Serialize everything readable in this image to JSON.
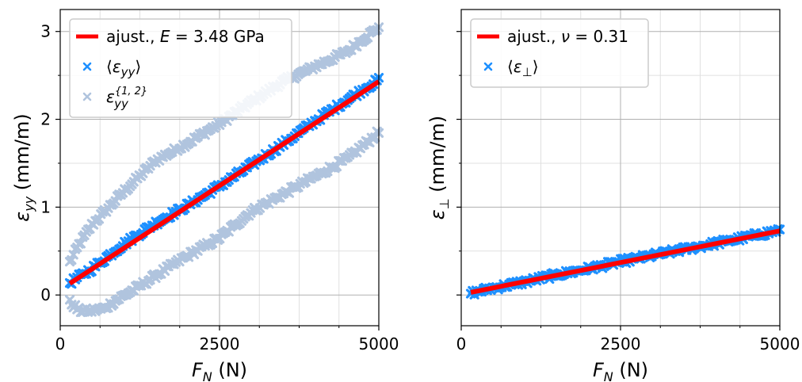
{
  "colors": {
    "fit": "#ff0000",
    "mean": "#1e90ff",
    "gauges": "#b0c4de",
    "grid_major": "#b0b0b0",
    "grid_minor": "#e0e0e0"
  },
  "chart_data": [
    {
      "type": "scatter",
      "xlabel_main": "F",
      "xlabel_sub": "N",
      "xlabel_unit": " (N)",
      "ylabel_main": "ε",
      "ylabel_sub": "yy",
      "ylabel_unit": " (mm/m)",
      "xlim": [
        0,
        5000
      ],
      "ylim": [
        -0.35,
        3.25
      ],
      "xticks": [
        0,
        2500,
        5000
      ],
      "yticks": [
        0,
        1,
        2,
        3
      ],
      "grid": true,
      "legend_position": "upper-left",
      "legend": [
        {
          "label_prefix": "ajust., ",
          "label_var": "E",
          "label_rest": " = 3.48 GPa",
          "marker": "line",
          "color": "#ff0000"
        },
        {
          "label_prefix": "⟨",
          "label_var": "ε",
          "label_sub": "yy",
          "label_rest": "⟩",
          "marker": "x",
          "color": "#1e90ff"
        },
        {
          "label_prefix": "",
          "label_var": "ε",
          "label_sub": "yy",
          "label_sup": "{1, 2}",
          "label_rest": "",
          "marker": "x",
          "color": "#b0c4de"
        }
      ],
      "series": [
        {
          "name": "ε_yy^{1,2}",
          "kind": "scatter",
          "color": "#b0c4de",
          "x": [
            150,
            300,
            500,
            700,
            1000,
            1500,
            2000,
            2500,
            3000,
            3500,
            4000,
            4500,
            5000
          ],
          "y": [
            0.37,
            0.58,
            0.8,
            0.95,
            1.18,
            1.53,
            1.73,
            1.95,
            2.2,
            2.43,
            2.6,
            2.77,
            3.05
          ]
        },
        {
          "name": "ε_yy^{1,2}",
          "kind": "scatter",
          "color": "#b0c4de",
          "x": [
            150,
            300,
            500,
            700,
            900,
            1200,
            1500,
            2000,
            2500,
            3000,
            3500,
            4000,
            4500,
            5000
          ],
          "y": [
            -0.08,
            -0.18,
            -0.18,
            -0.15,
            -0.05,
            0.08,
            0.22,
            0.45,
            0.65,
            0.95,
            1.15,
            1.35,
            1.55,
            1.85
          ]
        },
        {
          "name": "⟨ε_yy⟩",
          "kind": "scatter",
          "color": "#1e90ff",
          "x": [
            150,
            500,
            1000,
            1500,
            2000,
            2500,
            3000,
            3500,
            4000,
            4500,
            5000
          ],
          "y": [
            0.14,
            0.3,
            0.58,
            0.82,
            1.02,
            1.24,
            1.48,
            1.72,
            1.98,
            2.22,
            2.45
          ]
        },
        {
          "name": "ajust.",
          "kind": "line",
          "color": "#ff0000",
          "x": [
            150,
            5000
          ],
          "y": [
            0.13,
            2.43
          ]
        }
      ]
    },
    {
      "type": "scatter",
      "xlabel_main": "F",
      "xlabel_sub": "N",
      "xlabel_unit": " (N)",
      "ylabel_main": "ε",
      "ylabel_sub": "⊥",
      "ylabel_unit": " (mm/m)",
      "xlim": [
        0,
        5000
      ],
      "ylim": [
        -0.35,
        3.25
      ],
      "xticks": [
        0,
        2500,
        5000
      ],
      "yticks": [
        0,
        1,
        2,
        3
      ],
      "grid": true,
      "legend_position": "upper-left",
      "legend": [
        {
          "label_prefix": "ajust., ",
          "label_var": "ν",
          "label_rest": " = 0.31",
          "marker": "line",
          "color": "#ff0000"
        },
        {
          "label_prefix": "⟨",
          "label_var": "ε",
          "label_sub": "⊥",
          "label_rest": "⟩",
          "marker": "x",
          "color": "#1e90ff"
        }
      ],
      "series": [
        {
          "name": "⟨ε_⊥⟩",
          "kind": "scatter",
          "color": "#1e90ff",
          "x": [
            150,
            500,
            1000,
            1500,
            2000,
            2500,
            3000,
            3500,
            4000,
            4500,
            5000
          ],
          "y": [
            0.02,
            0.08,
            0.15,
            0.23,
            0.3,
            0.38,
            0.45,
            0.52,
            0.59,
            0.66,
            0.74
          ]
        },
        {
          "name": "ajust.",
          "kind": "line",
          "color": "#ff0000",
          "x": [
            150,
            5000
          ],
          "y": [
            0.03,
            0.73
          ]
        }
      ]
    }
  ]
}
